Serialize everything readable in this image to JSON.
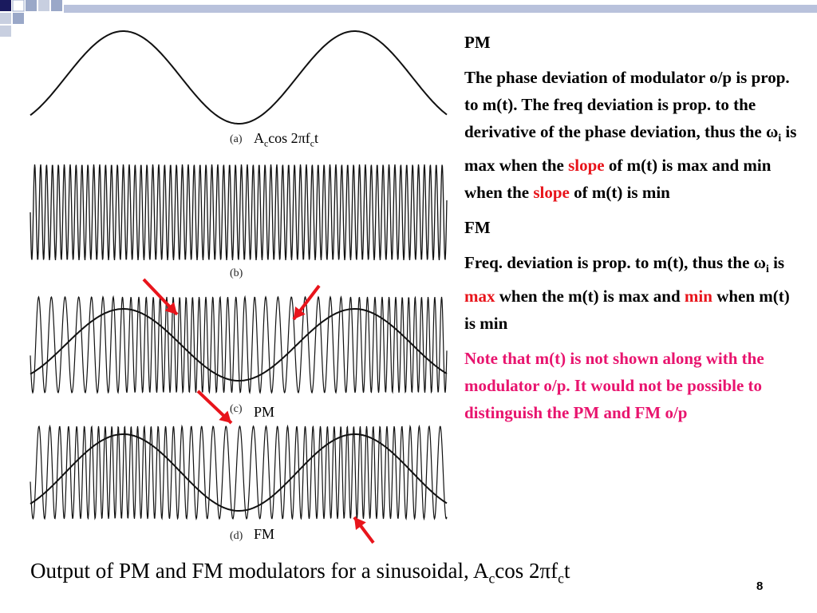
{
  "left_panels": {
    "a": {
      "tag": "(a)",
      "expr_A": "A",
      "expr_c1": "c",
      "expr_mid": "cos 2",
      "expr_pi": "π",
      "expr_f": "f",
      "expr_c2": "c",
      "expr_t": "t"
    },
    "b": {
      "tag": "(b)"
    },
    "c": {
      "tag": "(c)",
      "label": "PM"
    },
    "d": {
      "tag": "(d)",
      "label": "FM"
    }
  },
  "right": {
    "pm_heading": "PM",
    "pm_p1": "The phase deviation of modulator o/p is prop. to m(t). The freq deviation is prop. to the derivative of the phase deviation, thus the ",
    "omega": "ω",
    "sub_i": "i",
    "pm_p2": " is max when the ",
    "slope1": "slope",
    "pm_p3": " of m(t) is max and min when the ",
    "slope2": "slope",
    "pm_p4": " of m(t) is min",
    "fm_heading": "FM",
    "fm_p1": "Freq. deviation is prop. to m(t), thus the ",
    "fm_omega": "ω",
    "fm_sub_i": "i",
    "fm_p2": " is ",
    "max": "max",
    "fm_p3": " when the m(t) is max and ",
    "min": "min",
    "fm_p4": " when m(t) is min",
    "note": "Note that m(t) is not shown along with the modulator o/p. It would not be possible to distinguish the PM and FM o/p"
  },
  "caption": {
    "text": "Output of PM and FM modulators for a sinusoidal, A",
    "sub1": "c",
    "mid": "cos 2",
    "pi": "π",
    "f": "f",
    "sub2": "c",
    "t": "t"
  },
  "page_number": "8",
  "colors": {
    "accent_red": "#e8141b",
    "note_pink": "#e8146e",
    "arrow_red": "#e8141b",
    "deco_navy": "#1a1a5e"
  }
}
